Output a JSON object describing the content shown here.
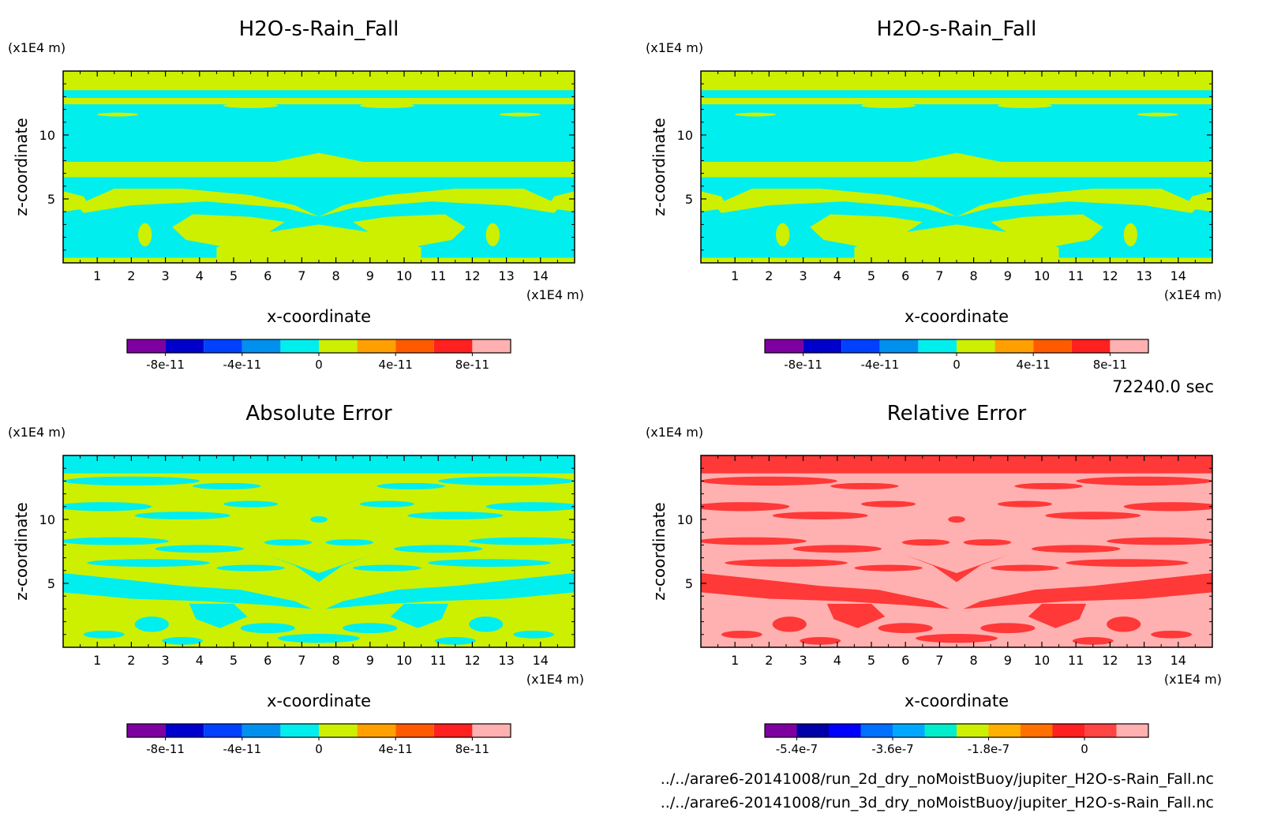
{
  "time_label": "72240.0 sec",
  "files": [
    "../../arare6-20141008/run_2d_dry_noMoistBuoy/jupiter_H2O-s-Rain_Fall.nc",
    "../../arare6-20141008/run_3d_dry_noMoistBuoy/jupiter_H2O-s-Rain_Fall.nc"
  ],
  "chart_data": [
    {
      "type": "heatmap",
      "title": "H2O-s-Rain_Fall",
      "xlabel": "x-coordinate",
      "ylabel": "z-coordinate",
      "x_unit": "(x1E4 m)",
      "y_unit": "(x1E4 m)",
      "xlim": [
        0,
        15
      ],
      "ylim": [
        0,
        15
      ],
      "x_ticks": [
        1,
        2,
        3,
        4,
        5,
        6,
        7,
        8,
        9,
        10,
        11,
        12,
        13,
        14
      ],
      "y_ticks": [
        5,
        10
      ],
      "colorbar": {
        "colors": [
          "#7f00a0",
          "#0000cc",
          "#0040ff",
          "#0090ee",
          "#00eeee",
          "#ccf000",
          "#ffa000",
          "#ff5a00",
          "#ff2020",
          "#ffb0b0"
        ],
        "tick_labels": [
          "-8e-11",
          "-4e-11",
          "0",
          "4e-11",
          "8e-11"
        ],
        "tick_positions": [
          1,
          3,
          5,
          7,
          9
        ]
      },
      "background_color": "#00eeee",
      "feature_color": "#ccf000",
      "field": "symmetric"
    },
    {
      "type": "heatmap",
      "title": "H2O-s-Rain_Fall",
      "xlabel": "x-coordinate",
      "ylabel": "z-coordinate",
      "x_unit": "(x1E4 m)",
      "y_unit": "(x1E4 m)",
      "xlim": [
        0,
        15
      ],
      "ylim": [
        0,
        15
      ],
      "x_ticks": [
        1,
        2,
        3,
        4,
        5,
        6,
        7,
        8,
        9,
        10,
        11,
        12,
        13,
        14
      ],
      "y_ticks": [
        5,
        10
      ],
      "colorbar": {
        "colors": [
          "#7f00a0",
          "#0000cc",
          "#0040ff",
          "#0090ee",
          "#00eeee",
          "#ccf000",
          "#ffa000",
          "#ff5a00",
          "#ff2020",
          "#ffb0b0"
        ],
        "tick_labels": [
          "-8e-11",
          "-4e-11",
          "0",
          "4e-11",
          "8e-11"
        ],
        "tick_positions": [
          1,
          3,
          5,
          7,
          9
        ]
      },
      "background_color": "#00eeee",
      "feature_color": "#ccf000",
      "field": "symmetric"
    },
    {
      "type": "heatmap",
      "title": "Absolute Error",
      "xlabel": "x-coordinate",
      "ylabel": "z-coordinate",
      "x_unit": "(x1E4 m)",
      "y_unit": "(x1E4 m)",
      "xlim": [
        0,
        15
      ],
      "ylim": [
        0,
        15
      ],
      "x_ticks": [
        1,
        2,
        3,
        4,
        5,
        6,
        7,
        8,
        9,
        10,
        11,
        12,
        13,
        14
      ],
      "y_ticks": [
        5,
        10
      ],
      "colorbar": {
        "colors": [
          "#7f00a0",
          "#0000cc",
          "#0040ff",
          "#0090ee",
          "#00eeee",
          "#ccf000",
          "#ffa000",
          "#ff5a00",
          "#ff2020",
          "#ffb0b0"
        ],
        "tick_labels": [
          "-8e-11",
          "-4e-11",
          "0",
          "4e-11",
          "8e-11"
        ],
        "tick_positions": [
          1,
          3,
          5,
          7,
          9
        ]
      },
      "background_color": "#ccf000",
      "feature_color": "#00eeee",
      "field": "error"
    },
    {
      "type": "heatmap",
      "title": "Relative Error",
      "xlabel": "x-coordinate",
      "ylabel": "z-coordinate",
      "x_unit": "(x1E4 m)",
      "y_unit": "(x1E4 m)",
      "xlim": [
        0,
        15
      ],
      "ylim": [
        0,
        15
      ],
      "x_ticks": [
        1,
        2,
        3,
        4,
        5,
        6,
        7,
        8,
        9,
        10,
        11,
        12,
        13,
        14
      ],
      "y_ticks": [
        5,
        10
      ],
      "colorbar": {
        "colors": [
          "#7f00a0",
          "#0000a8",
          "#0000ff",
          "#0070ff",
          "#00a8ff",
          "#00eecc",
          "#ccf000",
          "#ffb000",
          "#ff7000",
          "#ff2020",
          "#ff4444",
          "#ffb0b0"
        ],
        "tick_labels": [
          "-5.4e-7",
          "-3.6e-7",
          "-1.8e-7",
          "0"
        ],
        "tick_positions": [
          1,
          4,
          7,
          10
        ]
      },
      "background_color": "#ffb0b0",
      "feature_color": "#ff3838",
      "field": "error"
    }
  ]
}
